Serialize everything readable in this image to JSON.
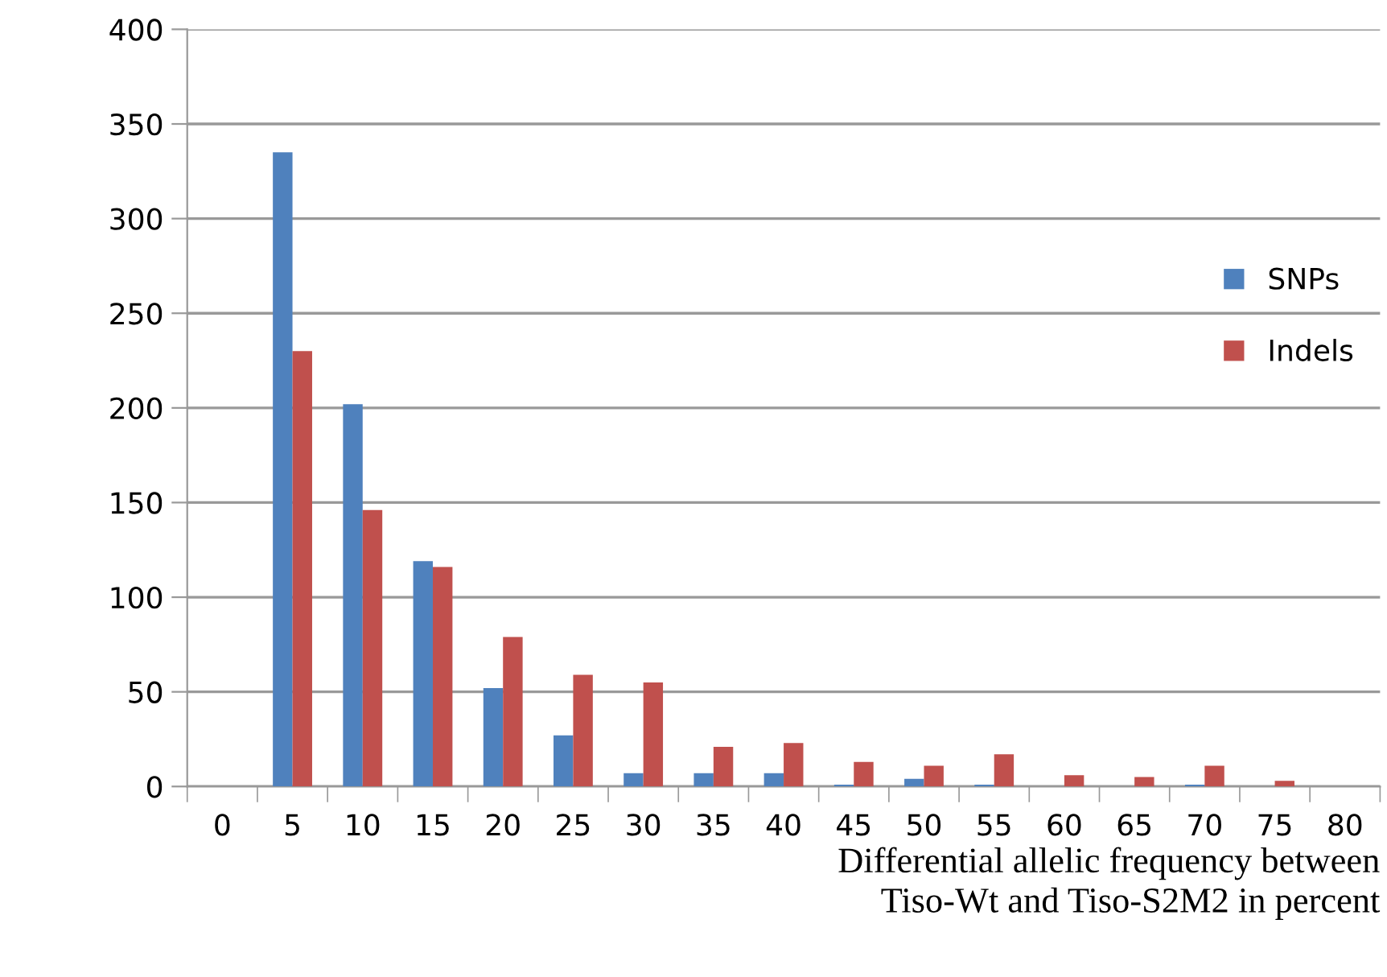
{
  "chart_data": {
    "type": "bar",
    "xlabel": "Differential allelic frequency between\nTiso-Wt and Tiso-S2M2 in percent",
    "categories": [
      "0",
      "5",
      "10",
      "15",
      "20",
      "25",
      "30",
      "35",
      "40",
      "45",
      "50",
      "55",
      "60",
      "65",
      "70",
      "75",
      "80"
    ],
    "series": [
      {
        "name": "SNPs",
        "color": "#4f81bd",
        "values": [
          0,
          335,
          202,
          119,
          52,
          27,
          7,
          7,
          7,
          1,
          4,
          1,
          0,
          0,
          1,
          0,
          0
        ]
      },
      {
        "name": "Indels",
        "color": "#c0504d",
        "values": [
          0,
          230,
          146,
          116,
          79,
          59,
          55,
          21,
          23,
          13,
          11,
          17,
          6,
          5,
          11,
          3,
          0
        ]
      }
    ],
    "ylim": [
      0,
      400
    ],
    "yticks": [
      0,
      50,
      100,
      150,
      200,
      250,
      300,
      350,
      400
    ],
    "grid": "y",
    "legend": "right"
  }
}
